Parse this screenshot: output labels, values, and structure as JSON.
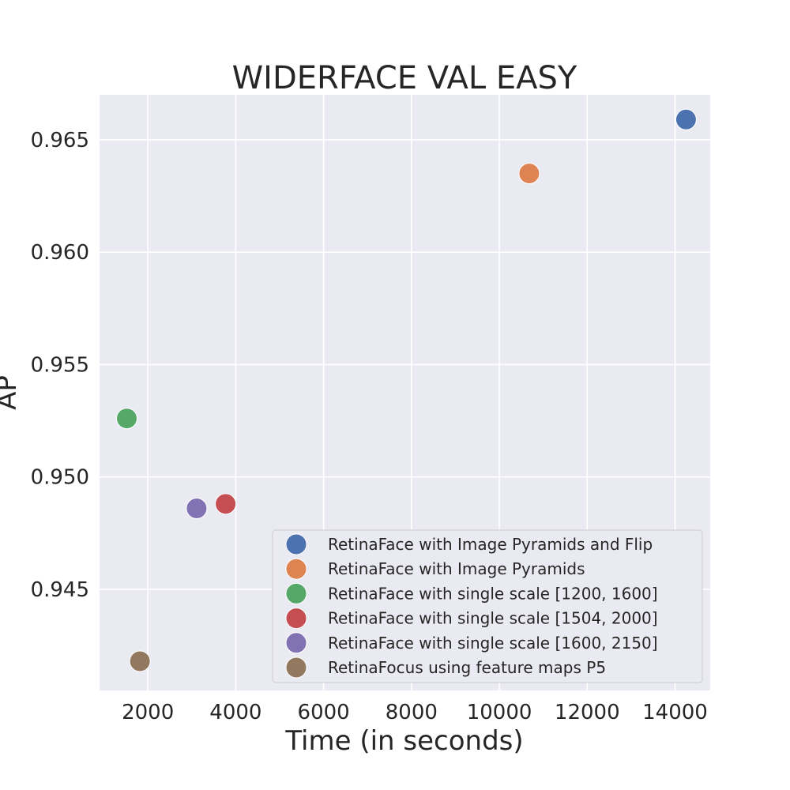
{
  "chart_data": {
    "type": "scatter",
    "title": "WIDERFACE VAL EASY",
    "xlabel": "Time (in seconds)",
    "ylabel": "AP",
    "xlim": [
      900,
      14800
    ],
    "ylim": [
      0.9405,
      0.967
    ],
    "xticks": [
      2000,
      4000,
      6000,
      8000,
      10000,
      12000,
      14000
    ],
    "xtick_labels": [
      "2000",
      "4000",
      "6000",
      "8000",
      "10000",
      "12000",
      "14000"
    ],
    "yticks": [
      0.945,
      0.95,
      0.955,
      0.96,
      0.965
    ],
    "ytick_labels": [
      "0.945",
      "0.950",
      "0.955",
      "0.960",
      "0.965"
    ],
    "grid": true,
    "legend_position": "bottom-right",
    "colors": {
      "background": "#eaeaf2",
      "grid": "#ffffff",
      "text": "#262626"
    },
    "series": [
      {
        "name": "RetinaFace with Image Pyramids and Flip",
        "color": "#4c72b0",
        "points": [
          {
            "x": 14250,
            "y": 0.9659
          }
        ]
      },
      {
        "name": "RetinaFace with Image Pyramids",
        "color": "#dd8452",
        "points": [
          {
            "x": 10680,
            "y": 0.9635
          }
        ]
      },
      {
        "name": "RetinaFace with single scale [1200, 1600]",
        "color": "#55a868",
        "points": [
          {
            "x": 1520,
            "y": 0.9526
          }
        ]
      },
      {
        "name": "RetinaFace with single scale [1504, 2000]",
        "color": "#c44e52",
        "points": [
          {
            "x": 3770,
            "y": 0.9488
          }
        ]
      },
      {
        "name": "RetinaFace with single scale [1600, 2150]",
        "color": "#8172b3",
        "points": [
          {
            "x": 3110,
            "y": 0.9486
          }
        ]
      },
      {
        "name": "RetinaFocus using feature maps P5",
        "color": "#937860",
        "points": [
          {
            "x": 1820,
            "y": 0.9418
          }
        ]
      }
    ]
  }
}
